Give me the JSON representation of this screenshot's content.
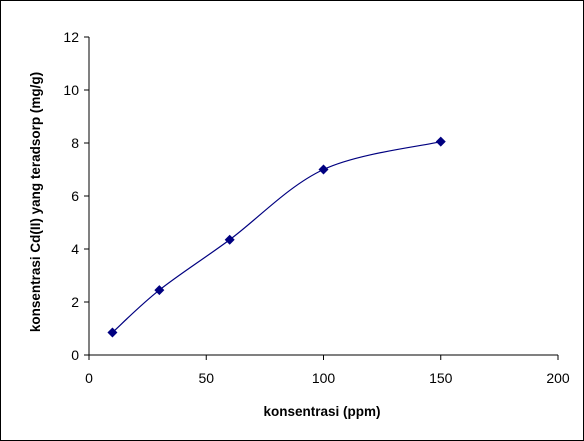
{
  "chart_data": {
    "type": "scatter",
    "title": "",
    "xlabel": "konsentrasi (ppm)",
    "ylabel": "konsentrasi Cd(II) yang teradsorp (mg/g)",
    "xlim": [
      0,
      200
    ],
    "ylim": [
      0,
      12
    ],
    "x_ticks": [
      0,
      50,
      100,
      150,
      200
    ],
    "y_ticks": [
      0,
      2,
      4,
      6,
      8,
      10,
      12
    ],
    "grid": false,
    "legend": "none",
    "series": [
      {
        "x": [
          10,
          30,
          60,
          100,
          150
        ],
        "y": [
          0.85,
          2.45,
          4.35,
          7.0,
          8.05
        ],
        "color": "#000080",
        "marker": "diamond",
        "line": "smooth"
      }
    ]
  }
}
